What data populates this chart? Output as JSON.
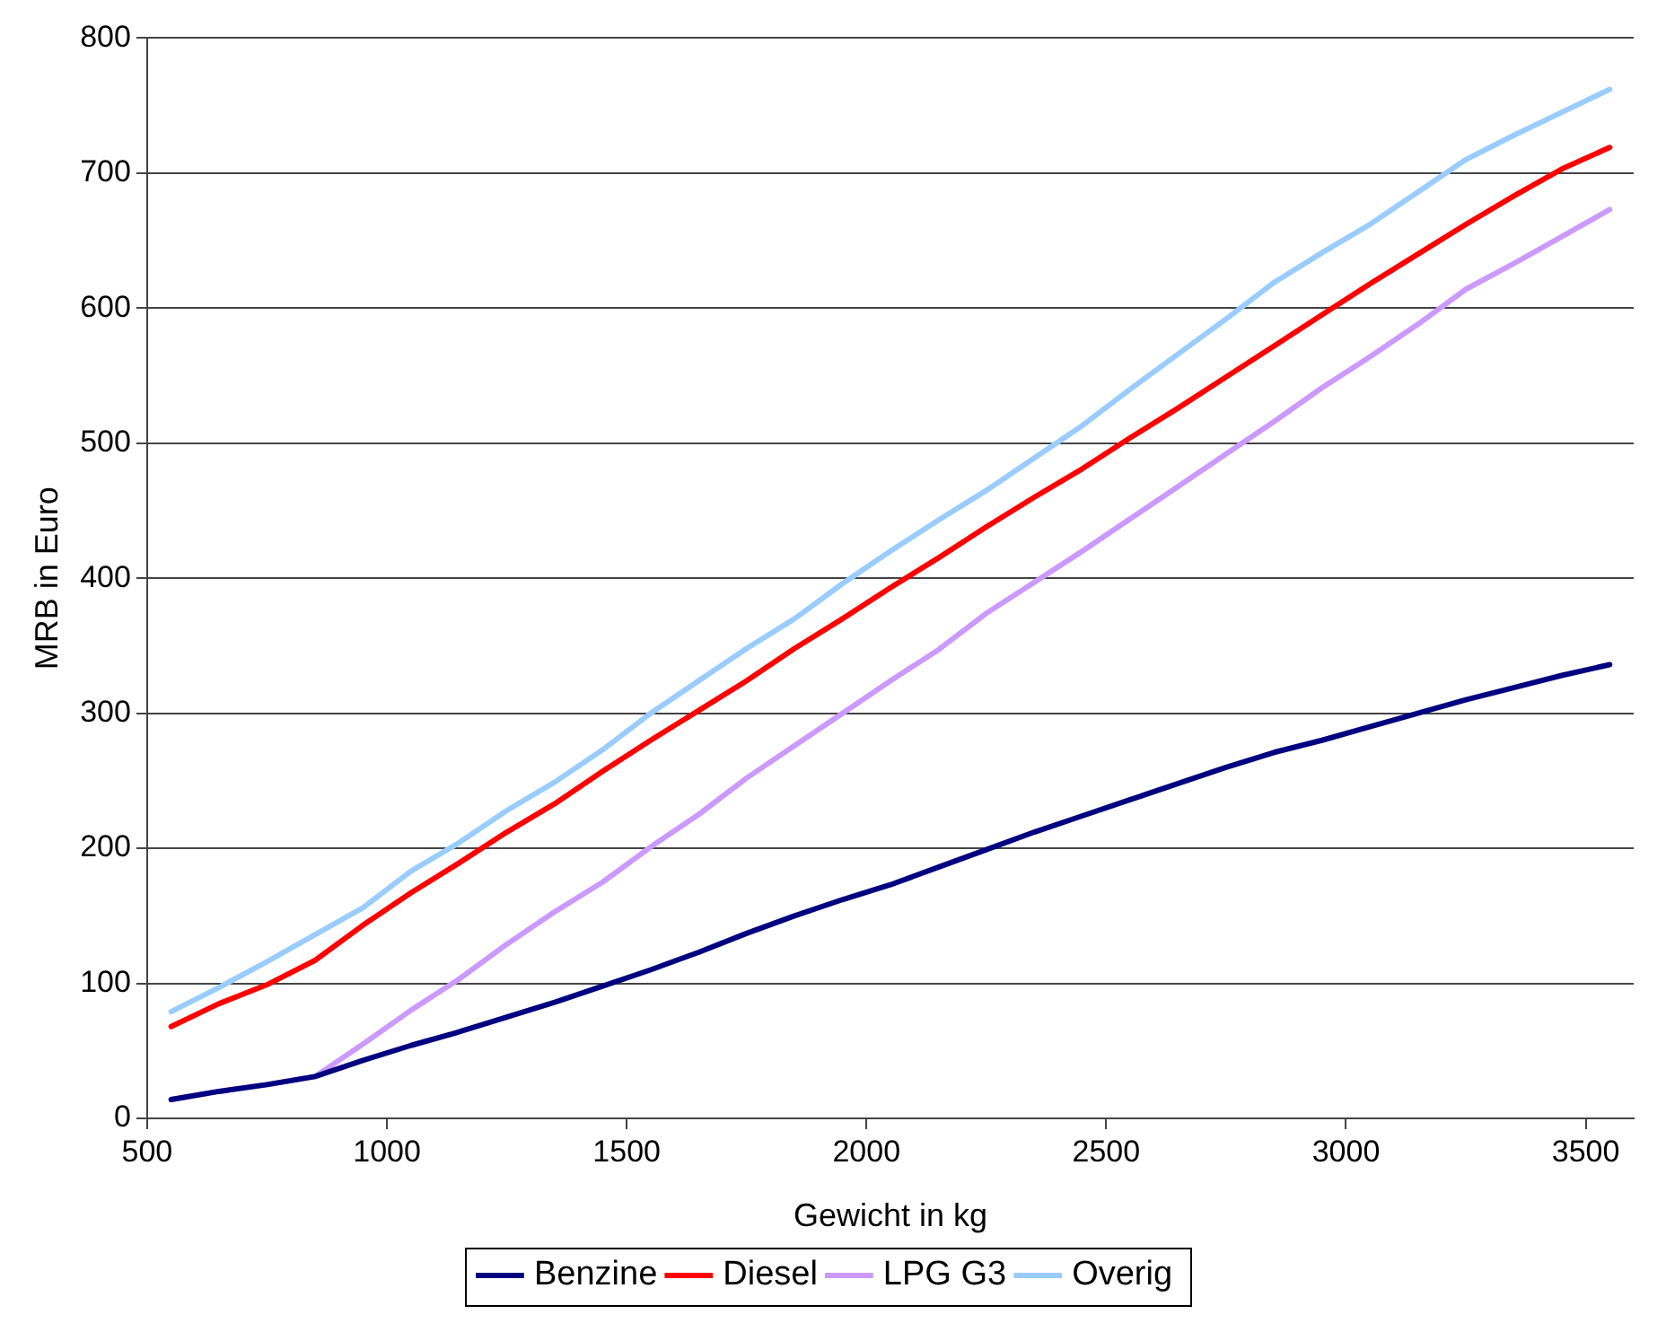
{
  "chart_data": {
    "type": "line",
    "xlabel": "Gewicht in kg",
    "ylabel": "MRB in Euro",
    "x": [
      550,
      650,
      750,
      850,
      950,
      1050,
      1150,
      1250,
      1350,
      1450,
      1550,
      1650,
      1750,
      1850,
      1950,
      2050,
      2150,
      2250,
      2350,
      2450,
      2550,
      2650,
      2750,
      2850,
      2950,
      3050,
      3150,
      3250,
      3350,
      3450,
      3550
    ],
    "series": [
      {
        "name": "Benzine",
        "color": "#000080",
        "values": [
          14,
          20,
          25,
          31,
          43,
          54,
          64,
          75,
          86,
          98,
          110,
          123,
          137,
          150,
          162,
          173,
          186,
          199,
          212,
          224,
          236,
          248,
          260,
          271,
          280,
          290,
          300,
          310,
          319,
          328,
          336
        ]
      },
      {
        "name": "Diesel",
        "color": "#ff0000",
        "values": [
          68,
          85,
          99,
          117,
          143,
          167,
          189,
          212,
          233,
          257,
          280,
          302,
          324,
          348,
          370,
          393,
          415,
          438,
          460,
          481,
          504,
          526,
          549,
          572,
          595,
          618,
          640,
          662,
          683,
          703,
          719
        ]
      },
      {
        "name": "LPG G3",
        "color": "#cc99ff",
        "values": [
          14,
          20,
          25,
          31,
          55,
          80,
          103,
          129,
          153,
          175,
          201,
          225,
          252,
          276,
          300,
          324,
          347,
          374,
          397,
          420,
          444,
          468,
          492,
          516,
          541,
          564,
          588,
          614,
          633,
          653,
          673
        ]
      },
      {
        "name": "Overig",
        "color": "#99ccff",
        "values": [
          79,
          97,
          116,
          136,
          156,
          183,
          204,
          228,
          249,
          273,
          300,
          324,
          348,
          370,
          396,
          420,
          443,
          465,
          489,
          513,
          540,
          566,
          592,
          619,
          641,
          662,
          686,
          710,
          728,
          745,
          762
        ]
      }
    ],
    "xlim": [
      500,
      3600
    ],
    "xticks": [
      500,
      1000,
      1500,
      2000,
      2500,
      3000,
      3500
    ],
    "ylim": [
      0,
      800
    ],
    "yticks": [
      0,
      100,
      200,
      300,
      400,
      500,
      600,
      700,
      800
    ],
    "grid": "y",
    "legend": "bottom",
    "marker": "none",
    "line_style": "solid"
  }
}
